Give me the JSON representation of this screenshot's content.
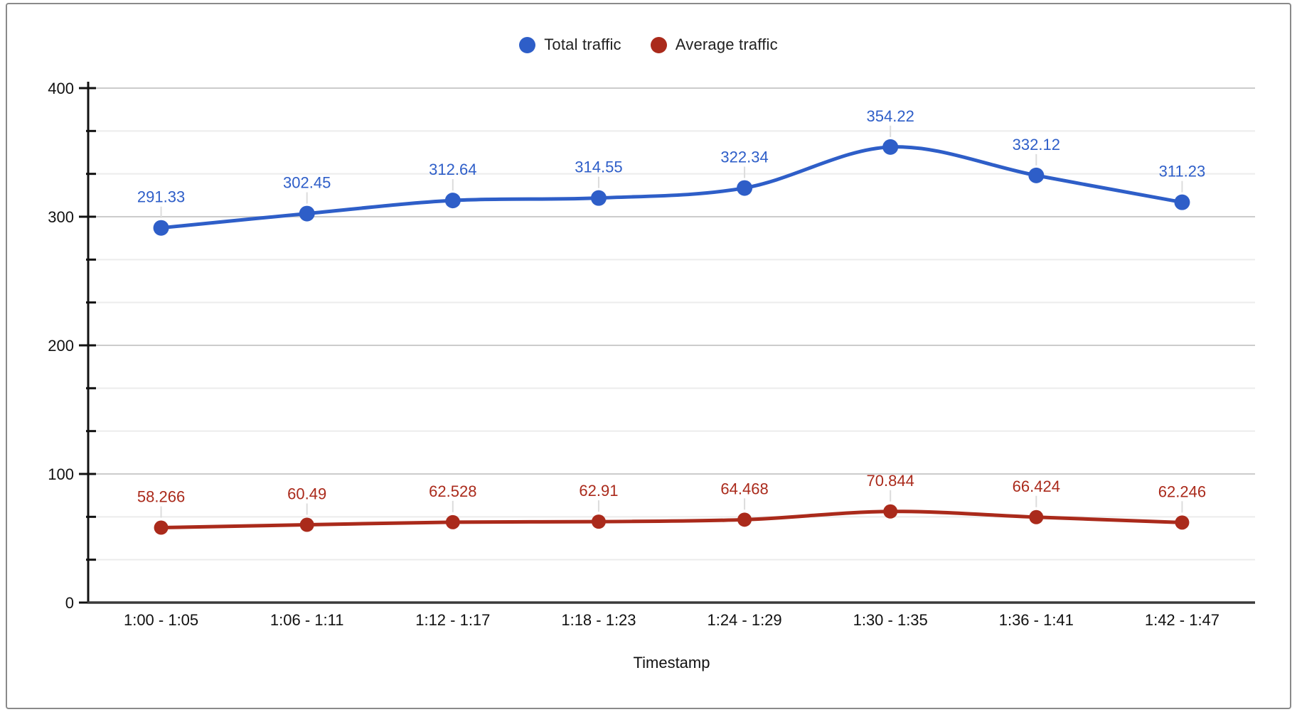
{
  "frame": {
    "border_color": "#8a8a8a"
  },
  "legend": {
    "items": [
      {
        "label": "Total traffic",
        "color": "#2e5ec8"
      },
      {
        "label": "Average traffic",
        "color": "#aa2a1b"
      }
    ]
  },
  "chart_data": {
    "type": "line",
    "smooth": true,
    "title": "",
    "xlabel": "Timestamp",
    "ylabel": "",
    "ylim": [
      0,
      400
    ],
    "y_major_ticks": [
      0,
      100,
      200,
      300,
      400
    ],
    "y_minor_divisions_per_major": 3,
    "grid": true,
    "legend_position": "top-center",
    "axis_color": "#111111",
    "baseline_color": "#3a3a3a",
    "major_grid_color": "#cccccc",
    "minor_grid_color": "#ececec",
    "leader_line_color": "#dcdcdc",
    "categories": [
      "1:00 - 1:05",
      "1:06 - 1:11",
      "1:12 - 1:17",
      "1:18 - 1:23",
      "1:24 - 1:29",
      "1:30 - 1:35",
      "1:36 - 1:41",
      "1:42 - 1:47"
    ],
    "series": [
      {
        "name": "Total traffic",
        "color": "#2e5ec8",
        "values": [
          291.33,
          302.45,
          312.64,
          314.55,
          322.34,
          354.22,
          332.12,
          311.23
        ],
        "labels": [
          "291.33",
          "302.45",
          "312.64",
          "314.55",
          "322.34",
          "354.22",
          "332.12",
          "311.23"
        ]
      },
      {
        "name": "Average traffic",
        "color": "#aa2a1b",
        "values": [
          58.266,
          60.49,
          62.528,
          62.91,
          64.468,
          70.844,
          66.424,
          62.246
        ],
        "labels": [
          "58.266",
          "60.49",
          "62.528",
          "62.91",
          "64.468",
          "70.844",
          "66.424",
          "62.246"
        ]
      }
    ]
  }
}
